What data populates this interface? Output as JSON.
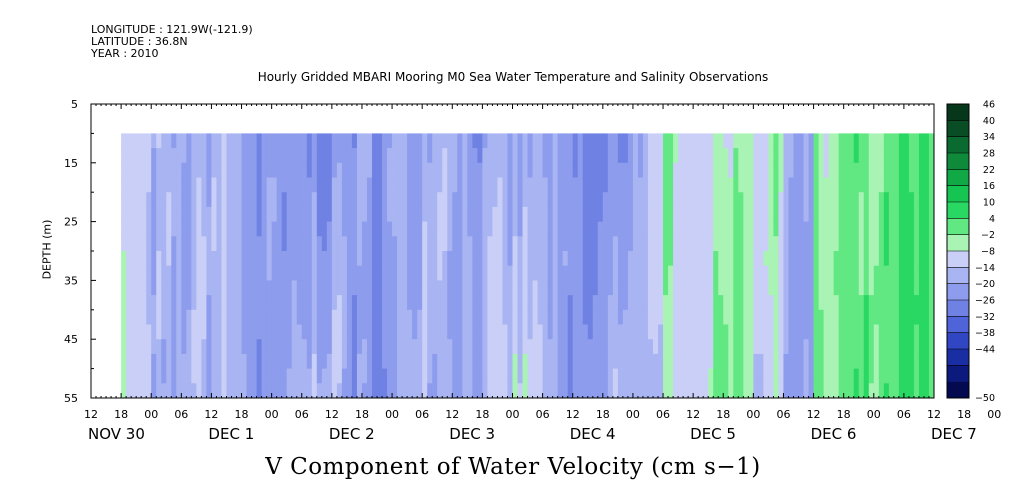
{
  "header": {
    "longitude": "LONGITUDE : 121.9W(-121.9)",
    "latitude": "LATITUDE : 36.8N",
    "year": "YEAR : 2010"
  },
  "chart_data": {
    "type": "heatmap",
    "title": "Hourly Gridded MBARI Mooring M0 Sea Water Temperature and Salinity Observations",
    "xlabel": "V Component of Water Velocity (cm s−1)",
    "ylabel": "DEPTH (m)",
    "x_axis": {
      "time_range_hours": [
        0,
        168
      ],
      "data_start_hour": 6,
      "hour_tick_labels": [
        "12",
        "18",
        "00",
        "06",
        "12",
        "18",
        "00",
        "06",
        "12",
        "18",
        "00",
        "06",
        "12",
        "18",
        "00",
        "06",
        "12",
        "18",
        "00",
        "06",
        "12",
        "18",
        "00",
        "06",
        "12",
        "18",
        "00",
        "06",
        "12",
        "18",
        "00",
        "06",
        "12"
      ],
      "day_labels": [
        "NOV 30",
        "DEC  1",
        "DEC  2",
        "DEC  3",
        "DEC  4",
        "DEC  5",
        "DEC  6",
        "DEC  7"
      ]
    },
    "y_axis": {
      "range": [
        5,
        55
      ],
      "inverted": true,
      "tick_labels": [
        "5",
        "15",
        "25",
        "35",
        "45",
        "55"
      ],
      "data_depth_range": [
        10,
        55
      ]
    },
    "colorbar": {
      "levels": [
        "46",
        "40",
        "34",
        "28",
        "22",
        "16",
        "10",
        "4",
        "−2",
        "−8",
        "−14",
        "−20",
        "−26",
        "−32",
        "−38",
        "−44",
        "−50"
      ],
      "colors": [
        "#06371a",
        "#084d24",
        "#0b6a2f",
        "#0e8a3a",
        "#11a945",
        "#16c451",
        "#29d862",
        "#62e882",
        "#a9f3b4",
        "#c9cff6",
        "#a9b5f2",
        "#8d9cec",
        "#6f82e4",
        "#4f64d8",
        "#3146c2",
        "#1a2ea3",
        "#0c1a7e",
        "#030a50"
      ],
      "levels_inner": [
        -44,
        -38,
        -32,
        -26,
        -20,
        -14,
        -8,
        -2,
        4,
        10,
        16,
        22,
        28,
        34,
        40,
        46
      ]
    },
    "data_summary": [
      {
        "period": "NOV 30 18 - DEC 5 15",
        "dominant_sign": "negative",
        "typical_cm_s": -10
      },
      {
        "period": "DEC 5 18 - DEC 6 06",
        "dominant_sign": "positive",
        "typical_cm_s": 8
      },
      {
        "period": "DEC 6 06 - DEC 6 18",
        "dominant_sign": "mixed",
        "typical_cm_s": 0
      },
      {
        "period": "DEC 6 18 - DEC 7 12",
        "dominant_sign": "positive",
        "typical_cm_s": 12
      }
    ]
  }
}
